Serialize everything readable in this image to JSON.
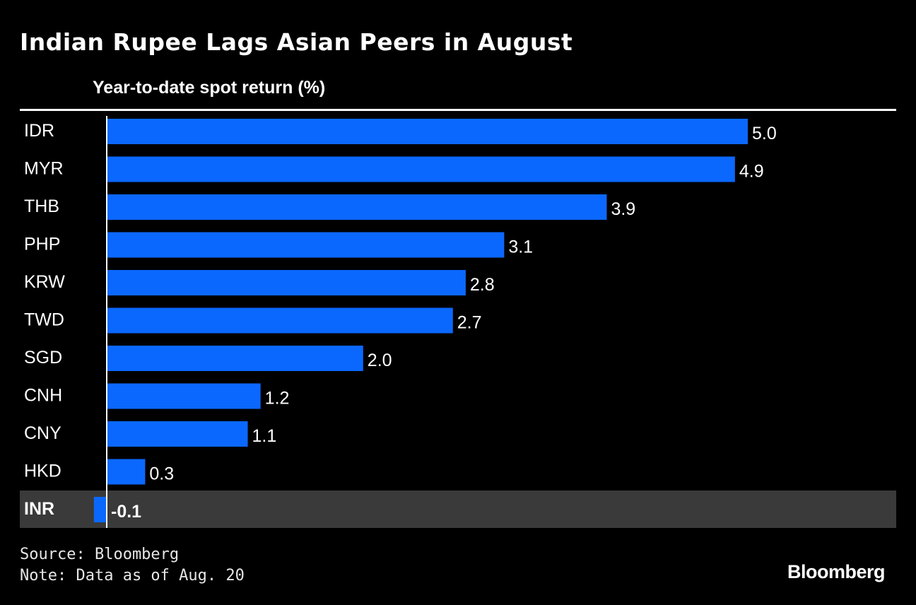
{
  "chart_data": {
    "type": "bar",
    "orientation": "horizontal",
    "title": "Indian Rupee Lags Asian Peers in August",
    "subtitle": "Year-to-date spot return (%)",
    "categories": [
      "IDR",
      "MYR",
      "THB",
      "PHP",
      "KRW",
      "TWD",
      "SGD",
      "CNH",
      "CNY",
      "HKD",
      "INR"
    ],
    "values": [
      5.0,
      4.9,
      3.9,
      3.1,
      2.8,
      2.7,
      2.0,
      1.2,
      1.1,
      0.3,
      -0.1
    ],
    "value_labels": [
      "5.0",
      "4.9",
      "3.9",
      "3.1",
      "2.8",
      "2.7",
      "2.0",
      "1.2",
      "1.1",
      "0.3",
      "-0.1"
    ],
    "highlighted_category": "INR",
    "colors": {
      "bar": "#0b68ff",
      "background": "#000000",
      "highlight_row": "#3a3a3a",
      "text": "#ffffff"
    }
  },
  "footer": {
    "source": "Source: Bloomberg",
    "note": "Note: Data as of Aug. 20"
  },
  "logo": "Bloomberg"
}
